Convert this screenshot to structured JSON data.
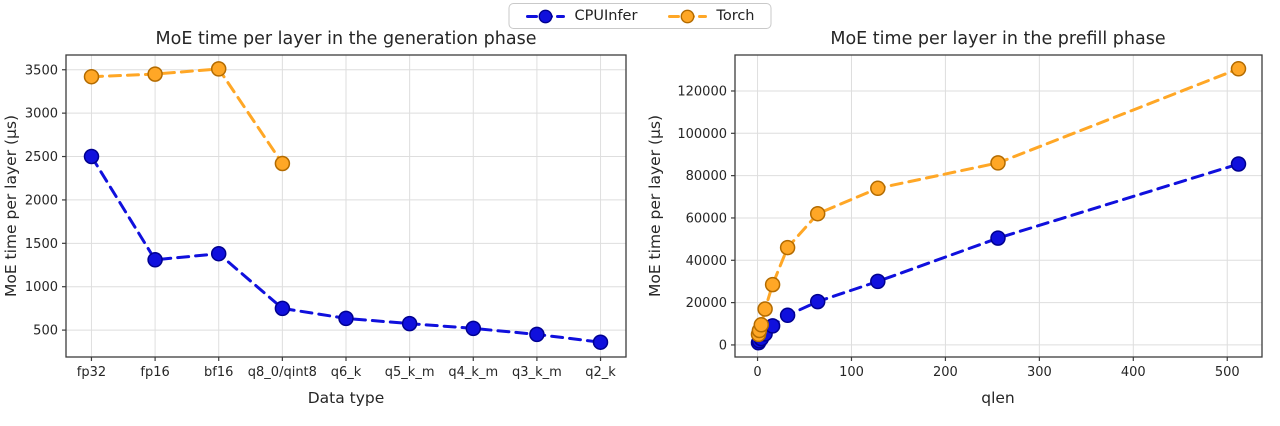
{
  "figure": {
    "background": "#ffffff",
    "grid_color": "#dedede",
    "frame_color": "#3c3c3c",
    "text_color": "#262626"
  },
  "legend": {
    "position": "top-center",
    "items": [
      {
        "label": "CPUInfer",
        "color": "#1010dd",
        "marker_edge": "#000090"
      },
      {
        "label": "Torch",
        "color": "#ffa726",
        "marker_edge": "#b36b00"
      }
    ]
  },
  "chart_data": [
    {
      "type": "line",
      "title": "MoE time per layer in the generation phase",
      "xlabel": "Data type",
      "ylabel": "MoE time per layer (μs)",
      "linestyle": "dashed",
      "grid": true,
      "categories": [
        "fp32",
        "fp16",
        "bf16",
        "q8_0/qint8",
        "q6_k",
        "q5_k_m",
        "q4_k_m",
        "q3_k_m",
        "q2_k"
      ],
      "xlim": [
        -0.4,
        8.4
      ],
      "ylim": [
        190,
        3670
      ],
      "yticks": [
        500,
        1000,
        1500,
        2000,
        2500,
        3000,
        3500
      ],
      "series": [
        {
          "name": "CPUInfer",
          "color": "#1010dd",
          "marker_edge": "#000090",
          "values": [
            2500,
            1310,
            1380,
            750,
            635,
            575,
            520,
            450,
            360
          ]
        },
        {
          "name": "Torch",
          "color": "#ffa726",
          "marker_edge": "#b36b00",
          "values": [
            3420,
            3450,
            3510,
            2420,
            null,
            null,
            null,
            null,
            null
          ]
        }
      ]
    },
    {
      "type": "line",
      "title": "MoE time per layer in the prefill phase",
      "xlabel": "qlen",
      "ylabel": "MoE time per layer (μs)",
      "linestyle": "dashed",
      "grid": true,
      "x": [
        1,
        2,
        4,
        8,
        16,
        32,
        64,
        128,
        256,
        512
      ],
      "xlim": [
        -24,
        537
      ],
      "ylim": [
        -5700,
        137000
      ],
      "xticks": [
        0,
        100,
        200,
        300,
        400,
        500
      ],
      "yticks": [
        0,
        20000,
        40000,
        60000,
        80000,
        100000,
        120000
      ],
      "series": [
        {
          "name": "CPUInfer",
          "color": "#1010dd",
          "marker_edge": "#000090",
          "values": [
            1000,
            1900,
            3000,
            5200,
            9000,
            14000,
            20500,
            30000,
            50500,
            85500
          ]
        },
        {
          "name": "Torch",
          "color": "#ffa726",
          "marker_edge": "#b36b00",
          "values": [
            5000,
            6800,
            9500,
            17000,
            28500,
            46000,
            62000,
            74000,
            86000,
            130500
          ]
        }
      ]
    }
  ]
}
